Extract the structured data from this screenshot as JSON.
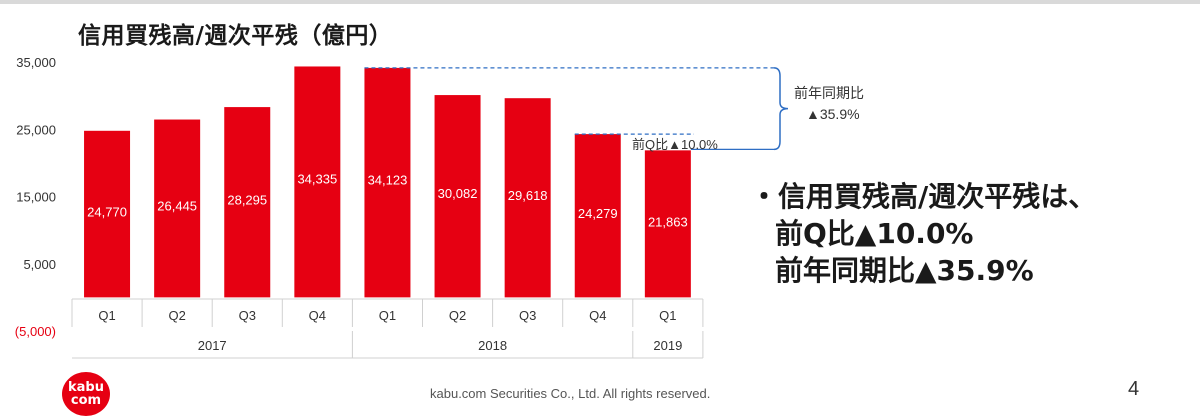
{
  "slide": {
    "title": "信用買残高/週次平残（億円）",
    "summary": [
      "・信用買残高/週次平残は、",
      "前Q比▲10.0%",
      "前年同期比▲35.9%"
    ],
    "footer": "kabu.com Securities Co., Ltd. All rights reserved.",
    "page_number": "4",
    "logo": [
      "kabu",
      "com"
    ]
  },
  "colors": {
    "bar": "#e60012",
    "annotation": "#2e6ec4",
    "axis_text": "#333333",
    "negative_tick": "#e60012",
    "grid_line": "#d0d0d0",
    "top_rule": "#d9d9d9"
  },
  "chart_data": {
    "type": "bar",
    "categories": [
      "Q1",
      "Q2",
      "Q3",
      "Q4",
      "Q1",
      "Q2",
      "Q3",
      "Q4",
      "Q1"
    ],
    "groups": [
      {
        "label": "2017",
        "count": 4
      },
      {
        "label": "2018",
        "count": 4
      },
      {
        "label": "2019",
        "count": 1
      }
    ],
    "values": [
      24770,
      26445,
      28295,
      34335,
      34123,
      30082,
      29618,
      24279,
      21863
    ],
    "value_labels": [
      "24,770",
      "26,445",
      "28,295",
      "34,335",
      "34,123",
      "30,082",
      "29,618",
      "24,279",
      "21,863"
    ],
    "y_ticks": [
      35000,
      25000,
      15000,
      5000,
      -5000
    ],
    "y_tick_labels": [
      "35,000",
      "25,000",
      "15,000",
      "5,000",
      "(5,000)"
    ],
    "ylim": [
      -5000,
      35000
    ],
    "grid": false,
    "annotations": [
      {
        "text": "前Q比▲10.0%"
      },
      {
        "text_lines": [
          "前年同期比",
          "▲35.9%"
        ]
      }
    ]
  }
}
